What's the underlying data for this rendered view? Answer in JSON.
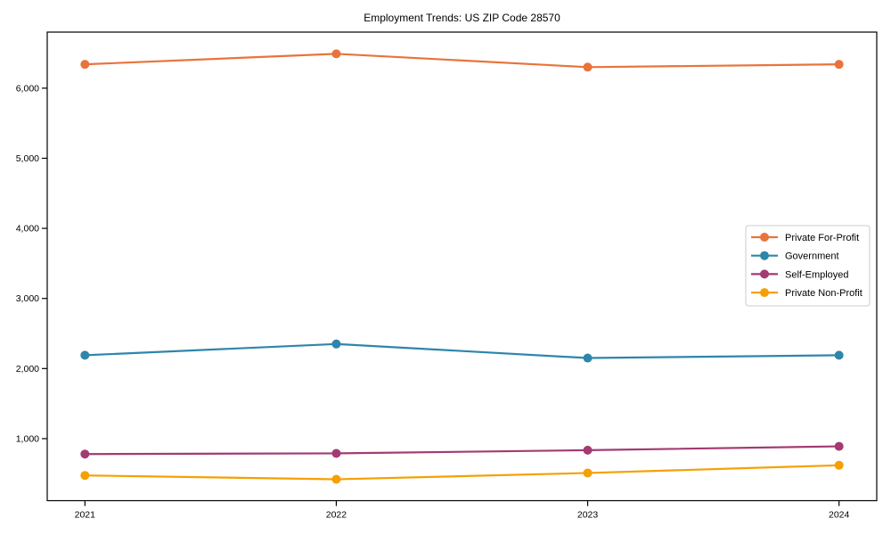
{
  "chart_data": {
    "type": "line",
    "title": "Employment Trends: US ZIP Code 28570",
    "xlabel": "",
    "ylabel": "",
    "x": [
      2021,
      2022,
      2023,
      2024
    ],
    "x_tick_labels": [
      "2021",
      "2022",
      "2023",
      "2024"
    ],
    "y_ticks": [
      1000,
      2000,
      3000,
      4000,
      5000,
      6000
    ],
    "y_tick_labels": [
      "1,000",
      "2,000",
      "3,000",
      "4,000",
      "5,000",
      "6,000"
    ],
    "xlim": [
      2020.85,
      2024.15
    ],
    "ylim": [
      115,
      6800
    ],
    "grid": false,
    "legend_position": "center right",
    "series": [
      {
        "name": "Private For-Profit",
        "color": "#E8743B",
        "values": [
          6340,
          6490,
          6300,
          6340
        ]
      },
      {
        "name": "Government",
        "color": "#2E86AB",
        "values": [
          2190,
          2350,
          2150,
          2190
        ]
      },
      {
        "name": "Self-Employed",
        "color": "#A23B72",
        "values": [
          780,
          790,
          835,
          890
        ]
      },
      {
        "name": "Private Non-Profit",
        "color": "#F5A002",
        "values": [
          475,
          420,
          510,
          620
        ]
      }
    ],
    "axis_color": "#000000",
    "legend_border_color": "#cccccc"
  }
}
